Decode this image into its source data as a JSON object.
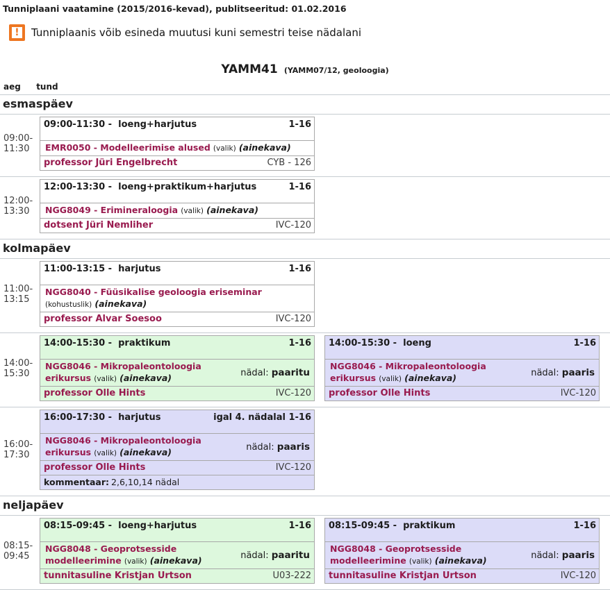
{
  "colors": {
    "accent_maroon": "#991b4f",
    "warning_orange": "#ee7621",
    "card_green": "#ddf8dd",
    "card_purple": "#dcdcf8"
  },
  "page": {
    "title": "Tunniplaani vaatamine (2015/2016-kevad), publitseeritud: 01.02.2016",
    "warning_glyph": "!",
    "warning": "Tunniplaanis võib esineda muutusi kuni semestri teise nädalani",
    "group_code": "YAMM41",
    "group_detail": "(YAMM07/12, geoloogia)",
    "col_aeg": "aeg",
    "col_tund": "tund"
  },
  "days": [
    {
      "name": "esmaspäev",
      "rows": [
        {
          "time_from": "09:00-",
          "time_to": "11:30",
          "cards": [
            {
              "variant": "white",
              "header_left": "09:00-11:30 -  loeng+harjutus",
              "header_right": "1-16",
              "course": "EMR0050 - Modelleerimise alused",
              "requirement": "(valik)",
              "ainekava": "(ainekava)",
              "staff": "professor Jüri Engelbrecht",
              "room": "CYB - 126"
            }
          ]
        },
        {
          "time_from": "12:00-",
          "time_to": "13:30",
          "cards": [
            {
              "variant": "white",
              "header_left": "12:00-13:30 -  loeng+praktikum+harjutus",
              "header_right": "1-16",
              "course": "NGG8049 - Erimineraloogia",
              "requirement": "(valik)",
              "ainekava": "(ainekava)",
              "staff": "dotsent Jüri Nemliher",
              "room": "IVC-120"
            }
          ]
        }
      ]
    },
    {
      "name": "kolmapäev",
      "rows": [
        {
          "time_from": "11:00-",
          "time_to": "13:15",
          "cards": [
            {
              "variant": "white",
              "header_left": "11:00-13:15 -  harjutus",
              "header_right": "1-16",
              "course": "NGG8040 - Füüsikalise geoloogia eriseminar",
              "requirement": "(kohustuslik)",
              "ainekava": "(ainekava)",
              "staff": "professor Alvar Soesoo",
              "room": "IVC-120"
            }
          ]
        },
        {
          "time_from": "14:00-",
          "time_to": "15:30",
          "cards": [
            {
              "variant": "green",
              "header_left": "14:00-15:30 -  praktikum",
              "header_right": "1-16",
              "course": "NGG8046 - Mikropaleontoloogia erikursus",
              "requirement": "(valik)",
              "ainekava": "(ainekava)",
              "week_label": "nädal:",
              "week_value": "paaritu",
              "staff": "professor Olle Hints",
              "room": "IVC-120"
            },
            {
              "variant": "purple",
              "header_left": "14:00-15:30 -  loeng",
              "header_right": "1-16",
              "course": "NGG8046 - Mikropaleontoloogia erikursus",
              "requirement": "(valik)",
              "ainekava": "(ainekava)",
              "week_label": "nädal:",
              "week_value": "paaris",
              "staff": "professor Olle Hints",
              "room": "IVC-120"
            }
          ]
        },
        {
          "time_from": "16:00-",
          "time_to": "17:30",
          "cards": [
            {
              "variant": "purple",
              "header_left": "16:00-17:30 -  harjutus",
              "header_right": "igal 4. nädalal 1-16",
              "course": "NGG8046 - Mikropaleontoloogia erikursus",
              "requirement": "(valik)",
              "ainekava": "(ainekava)",
              "week_label": "nädal:",
              "week_value": "paaris",
              "staff": "professor Olle Hints",
              "room": "IVC-120",
              "comment_label": "kommentaar:",
              "comment": "2,6,10,14 nädal"
            }
          ]
        }
      ]
    },
    {
      "name": "neljapäev",
      "rows": [
        {
          "time_from": "08:15-",
          "time_to": "09:45",
          "cards": [
            {
              "variant": "green",
              "header_left": "08:15-09:45 -  loeng+harjutus",
              "header_right": "1-16",
              "course": "NGG8048 - Geoprotsesside modelleerimine",
              "requirement": "(valik)",
              "ainekava": "(ainekava)",
              "week_label": "nädal:",
              "week_value": "paaritu",
              "staff": "tunnitasuline Kristjan Urtson",
              "room": "U03-222"
            },
            {
              "variant": "purple",
              "header_left": "08:15-09:45 -  praktikum",
              "header_right": "1-16",
              "course": "NGG8048 - Geoprotsesside modelleerimine",
              "requirement": "(valik)",
              "ainekava": "(ainekava)",
              "week_label": "nädal:",
              "week_value": "paaris",
              "staff": "tunnitasuline Kristjan Urtson",
              "room": "IVC-120"
            }
          ]
        }
      ]
    }
  ]
}
